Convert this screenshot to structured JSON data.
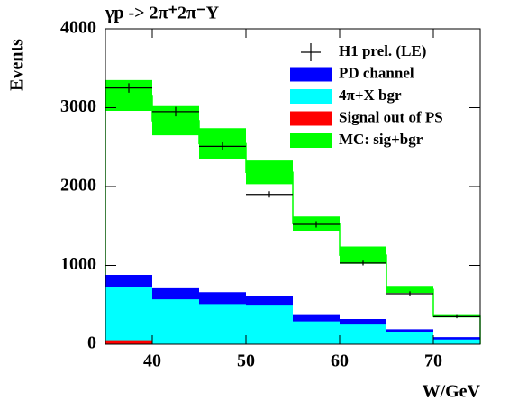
{
  "chart_data": {
    "type": "histogram",
    "title": "γp -> 2π⁺2π⁻Y",
    "xlabel": "W/GeV",
    "ylabel": "Events",
    "bins": [
      35,
      40,
      45,
      50,
      55,
      60,
      65,
      70,
      75
    ],
    "xlim": [
      35,
      75
    ],
    "xticks": [
      40,
      50,
      60,
      70
    ],
    "ylim": [
      0,
      4000
    ],
    "yticks": [
      0,
      1000,
      2000,
      3000,
      4000
    ],
    "legend": "upper right",
    "series": [
      {
        "name": "H1 prel. (LE)",
        "color": "#000000",
        "values": [
          3250,
          2950,
          2510,
          1900,
          1520,
          1030,
          640,
          350
        ],
        "errors": [
          60,
          60,
          50,
          40,
          40,
          30,
          30,
          20
        ]
      },
      {
        "name": "PD channel",
        "color": "#0000ff",
        "values": [
          880,
          710,
          660,
          610,
          370,
          320,
          190,
          90
        ]
      },
      {
        "name": "4π+X bgr",
        "color": "#00ffff",
        "values": [
          720,
          570,
          510,
          490,
          290,
          250,
          160,
          60
        ]
      },
      {
        "name": "Signal out of PS",
        "color": "#ff0000",
        "values": [
          50,
          0,
          0,
          0,
          0,
          0,
          0,
          0
        ]
      },
      {
        "name": "MC: sig+bgr",
        "color": "#00ff00",
        "values": [
          3155,
          2835,
          2545,
          2180,
          1530,
          1130,
          695,
          355
        ],
        "errors": [
          195,
          185,
          195,
          150,
          90,
          110,
          45,
          15
        ]
      }
    ]
  }
}
